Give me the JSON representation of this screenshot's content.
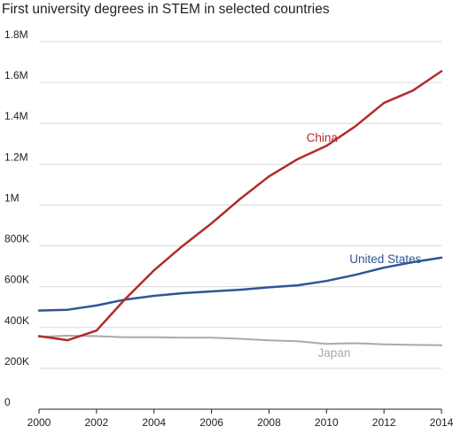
{
  "chart_data": {
    "type": "line",
    "title": "First university degrees in STEM in selected countries",
    "xlabel": "",
    "ylabel": "",
    "grid": true,
    "xlim": [
      2000,
      2014
    ],
    "ylim": [
      0,
      1800000
    ],
    "x_ticks": [
      {
        "value": 2000,
        "label": "2000"
      },
      {
        "value": 2002,
        "label": "2002"
      },
      {
        "value": 2004,
        "label": "2004"
      },
      {
        "value": 2006,
        "label": "2006"
      },
      {
        "value": 2008,
        "label": "2008"
      },
      {
        "value": 2010,
        "label": "2010"
      },
      {
        "value": 2012,
        "label": "2012"
      },
      {
        "value": 2014,
        "label": "2014"
      }
    ],
    "y_ticks": [
      {
        "value": 0,
        "label": "0"
      },
      {
        "value": 200000,
        "label": "200K"
      },
      {
        "value": 400000,
        "label": "400K"
      },
      {
        "value": 600000,
        "label": "600K"
      },
      {
        "value": 800000,
        "label": "800K"
      },
      {
        "value": 1000000,
        "label": "1M"
      },
      {
        "value": 1200000,
        "label": "1.2M"
      },
      {
        "value": 1400000,
        "label": "1.4M"
      },
      {
        "value": 1600000,
        "label": "1.6M"
      },
      {
        "value": 1800000,
        "label": "1.8M"
      }
    ],
    "x": [
      2000,
      2001,
      2002,
      2003,
      2004,
      2005,
      2006,
      2007,
      2008,
      2009,
      2010,
      2011,
      2012,
      2013,
      2014
    ],
    "series": [
      {
        "name": "Japan",
        "color": "#a9a9a9",
        "label_at": {
          "x": 2009.7,
          "y": 255000
        },
        "values": [
          355000,
          360000,
          358000,
          352000,
          352000,
          350000,
          350000,
          345000,
          337000,
          333000,
          320000,
          323000,
          318000,
          315000,
          313000
        ]
      },
      {
        "name": "United States",
        "color": "#2f5597",
        "label_at": {
          "x": 2010.8,
          "y": 715000
        },
        "values": [
          483000,
          487000,
          508000,
          537000,
          555000,
          568000,
          577000,
          585000,
          597000,
          607000,
          628000,
          658000,
          693000,
          720000,
          742000
        ]
      },
      {
        "name": "China",
        "color": "#b22b2b",
        "label_at": {
          "x": 2009.3,
          "y": 1310000
        },
        "values": [
          358000,
          338000,
          385000,
          540000,
          680000,
          800000,
          910000,
          1030000,
          1140000,
          1225000,
          1290000,
          1385000,
          1500000,
          1560000,
          1655000
        ]
      }
    ]
  }
}
